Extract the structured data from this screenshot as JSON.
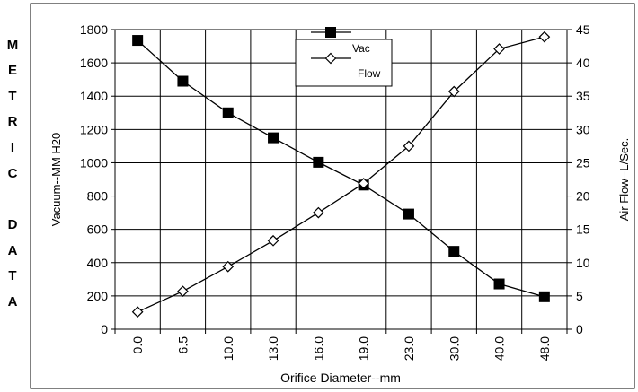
{
  "side_label": [
    "M",
    "E",
    "T",
    "R",
    "I",
    "C",
    "",
    "D",
    "A",
    "T",
    "A"
  ],
  "chart_data": {
    "type": "line",
    "title": "",
    "xlabel": "Orifice Diameter--mm",
    "ylabel": "Vacuum--MM H20",
    "y2label": "Air Flow--L/Sec.",
    "categories": [
      "0.0",
      "6.5",
      "10.0",
      "13.0",
      "16.0",
      "19.0",
      "23.0",
      "30.0",
      "40.0",
      "48.0"
    ],
    "ylim": [
      0,
      1800
    ],
    "yticks": [
      0,
      200,
      400,
      600,
      800,
      1000,
      1200,
      1400,
      1600,
      1800
    ],
    "y2lim": [
      0,
      45
    ],
    "y2ticks": [
      0,
      5,
      10,
      15,
      20,
      25,
      30,
      35,
      40,
      45
    ],
    "grid": true,
    "legend": "top-center",
    "series": [
      {
        "name": "Vac",
        "axis": "left",
        "marker": "square",
        "values": [
          1735,
          1490,
          1300,
          1150,
          1003,
          866,
          692,
          468,
          272,
          195
        ]
      },
      {
        "name": "Flow",
        "axis": "right",
        "marker": "diamond",
        "values": [
          2.6,
          5.7,
          9.4,
          13.3,
          17.5,
          21.9,
          27.5,
          35.7,
          42.1,
          43.9
        ]
      }
    ]
  }
}
